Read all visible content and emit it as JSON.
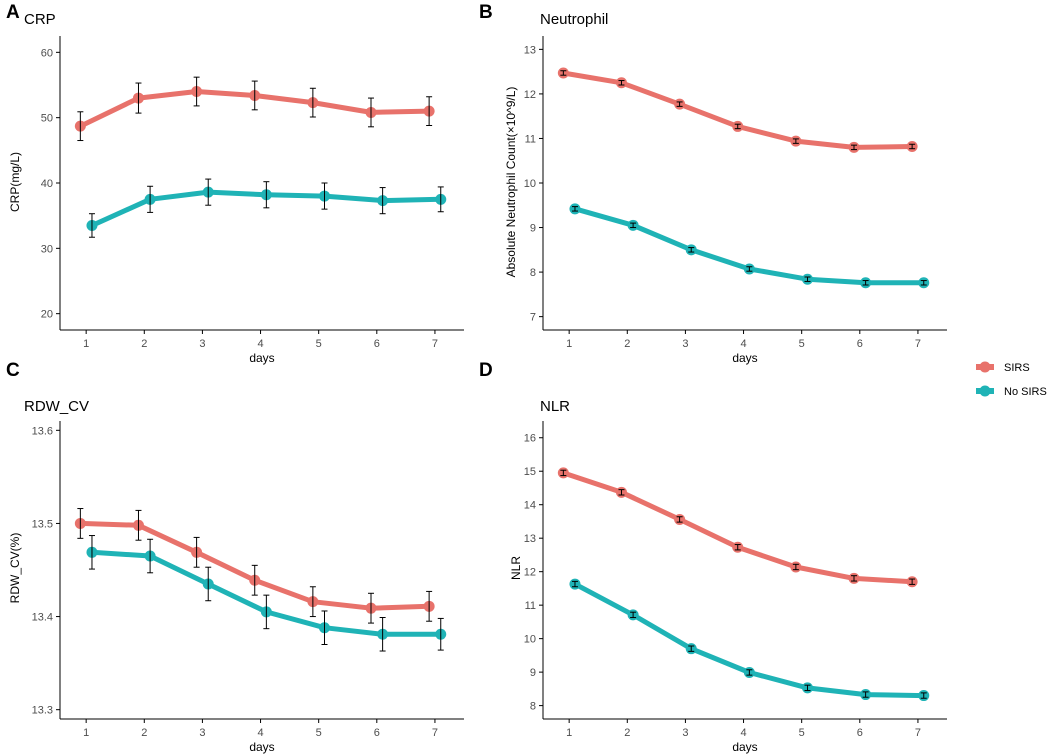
{
  "legend": {
    "entries": [
      {
        "name": "SIRS",
        "color": "#e8726b"
      },
      {
        "name": "No SIRS",
        "color": "#1fb3b6"
      }
    ]
  },
  "chart_data": [
    {
      "type": "line",
      "letter": "A",
      "title": "CRP",
      "xlabel": "days",
      "ylabel": "CRP(mg/L)",
      "x": [
        1,
        2,
        3,
        4,
        5,
        6,
        7
      ],
      "ylim": [
        17.5,
        62.5
      ],
      "yticks": [
        20,
        30,
        40,
        50,
        60
      ],
      "xticks": [
        1,
        2,
        3,
        4,
        5,
        6,
        7
      ],
      "series": [
        {
          "name": "SIRS",
          "values": [
            48.7,
            53.0,
            54.0,
            53.4,
            52.3,
            50.8,
            51.0
          ],
          "errors": [
            2.2,
            2.3,
            2.2,
            2.2,
            2.2,
            2.2,
            2.2
          ]
        },
        {
          "name": "No SIRS",
          "values": [
            33.5,
            37.5,
            38.6,
            38.2,
            38.0,
            37.3,
            37.5
          ],
          "errors": [
            1.8,
            2.0,
            2.0,
            2.0,
            2.0,
            2.0,
            1.9
          ]
        }
      ]
    },
    {
      "type": "line",
      "letter": "B",
      "title": "Neutrophil",
      "xlabel": "days",
      "ylabel": "Absolute Neutrophil Count(×10^9/L)",
      "x": [
        1,
        2,
        3,
        4,
        5,
        6,
        7
      ],
      "ylim": [
        6.7,
        13.3
      ],
      "yticks": [
        7,
        8,
        9,
        10,
        11,
        12,
        13
      ],
      "xticks": [
        1,
        2,
        3,
        4,
        5,
        6,
        7
      ],
      "series": [
        {
          "name": "SIRS",
          "values": [
            12.47,
            12.25,
            11.77,
            11.27,
            10.94,
            10.8,
            10.82
          ],
          "errors": [
            0.05,
            0.05,
            0.05,
            0.05,
            0.05,
            0.05,
            0.05
          ]
        },
        {
          "name": "No SIRS",
          "values": [
            9.42,
            9.05,
            8.5,
            8.07,
            7.84,
            7.76,
            7.76
          ],
          "errors": [
            0.05,
            0.05,
            0.05,
            0.05,
            0.05,
            0.05,
            0.05
          ]
        }
      ]
    },
    {
      "type": "line",
      "letter": "C",
      "title": "RDW_CV",
      "xlabel": "days",
      "ylabel": "RDW_CV(%)",
      "x": [
        1,
        2,
        3,
        4,
        5,
        6,
        7
      ],
      "ylim": [
        13.29,
        13.61
      ],
      "yticks": [
        13.3,
        13.4,
        13.5,
        13.6
      ],
      "xticks": [
        1,
        2,
        3,
        4,
        5,
        6,
        7
      ],
      "series": [
        {
          "name": "SIRS",
          "values": [
            13.5,
            13.498,
            13.469,
            13.439,
            13.416,
            13.409,
            13.411
          ],
          "errors": [
            0.016,
            0.016,
            0.016,
            0.016,
            0.016,
            0.016,
            0.016
          ]
        },
        {
          "name": "No SIRS",
          "values": [
            13.469,
            13.465,
            13.435,
            13.405,
            13.388,
            13.381,
            13.381
          ],
          "errors": [
            0.018,
            0.018,
            0.018,
            0.018,
            0.018,
            0.018,
            0.017
          ]
        }
      ]
    },
    {
      "type": "line",
      "letter": "D",
      "title": "NLR",
      "xlabel": "days",
      "ylabel": "NLR",
      "x": [
        1,
        2,
        3,
        4,
        5,
        6,
        7
      ],
      "ylim": [
        7.6,
        16.5
      ],
      "yticks": [
        8,
        9,
        10,
        11,
        12,
        13,
        14,
        15,
        16
      ],
      "xticks": [
        1,
        2,
        3,
        4,
        5,
        6,
        7
      ],
      "series": [
        {
          "name": "SIRS",
          "values": [
            14.95,
            14.37,
            13.56,
            12.73,
            12.14,
            11.8,
            11.7
          ],
          "errors": [
            0.08,
            0.08,
            0.08,
            0.08,
            0.08,
            0.08,
            0.08
          ]
        },
        {
          "name": "No SIRS",
          "values": [
            11.63,
            10.71,
            9.7,
            8.99,
            8.53,
            8.33,
            8.3
          ],
          "errors": [
            0.08,
            0.08,
            0.08,
            0.08,
            0.08,
            0.08,
            0.08
          ]
        }
      ]
    }
  ]
}
